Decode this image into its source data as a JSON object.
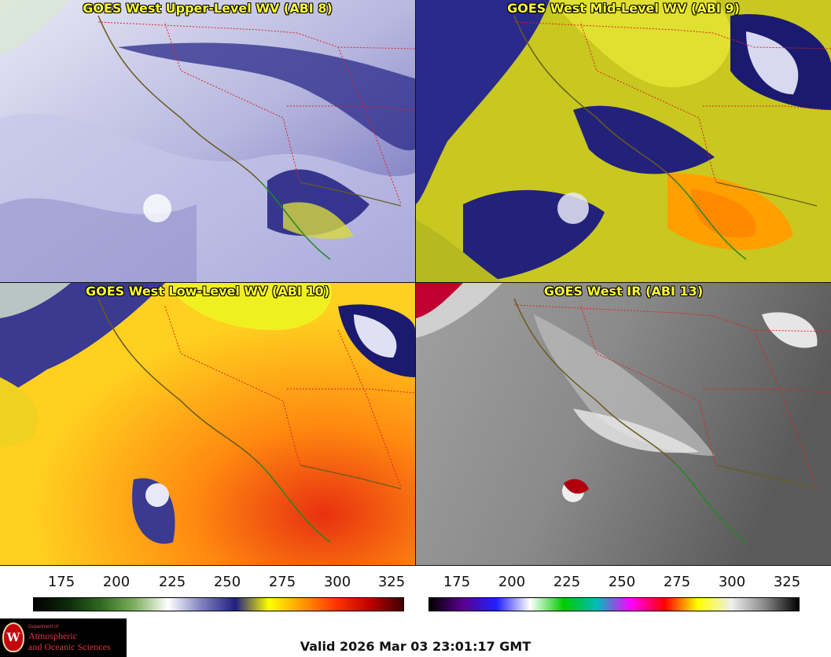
{
  "panels": [
    {
      "id": "upper",
      "title": "GOES West Upper-Level WV (ABI 8)"
    },
    {
      "id": "mid",
      "title": "GOES West Mid-Level WV (ABI 9)"
    },
    {
      "id": "low",
      "title": "GOES West Low-Level WV (ABI 10)"
    },
    {
      "id": "ir",
      "title": "GOES West IR (ABI 13)"
    }
  ],
  "colorbars": [
    {
      "id": "wv",
      "ticks": [
        "175",
        "200",
        "225",
        "250",
        "275",
        "300",
        "325"
      ],
      "colors": [
        "#000000",
        "#0a2a0a",
        "#2f6a20",
        "#7fb060",
        "#ffffff",
        "#8080c0",
        "#202080",
        "#ffff00",
        "#ff9900",
        "#ff3300",
        "#c00000",
        "#400000"
      ]
    },
    {
      "id": "ir",
      "ticks": [
        "175",
        "200",
        "225",
        "250",
        "275",
        "300",
        "325"
      ],
      "colors": [
        "#000000",
        "#5a0090",
        "#2020ff",
        "#ffffff",
        "#00cc00",
        "#00bbbb",
        "#ff00ff",
        "#ff0000",
        "#ffff00",
        "#eeeeee",
        "#888888",
        "#000000"
      ]
    }
  ],
  "logo": {
    "dept": "Department of",
    "line1": "Atmospheric",
    "line2": "and Oceanic Sciences",
    "seal_letter": "W"
  },
  "valid_time": "Valid 2026 Mar 03 23:01:17 GMT"
}
